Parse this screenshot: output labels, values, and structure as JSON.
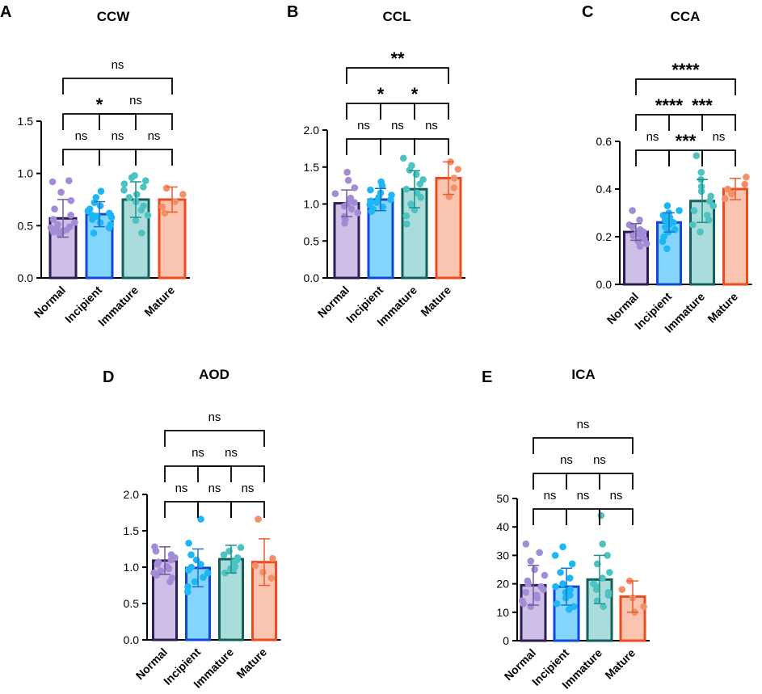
{
  "groups": [
    "Normal",
    "Incipient",
    "Immature",
    "Mature"
  ],
  "colors": {
    "fill": [
      "#cdbfe6",
      "#83d5fb",
      "#aadcdb",
      "#f9c4b0"
    ],
    "edge": [
      "#2e1d52",
      "#1049d8",
      "#11605c",
      "#ee4a1b"
    ],
    "dot": [
      "#a38cd6",
      "#1eb6f4",
      "#4cc3c0",
      "#f2906a"
    ],
    "err": [
      "#6c5aa0",
      "#1b73cf",
      "#1f8f87",
      "#e85e30"
    ]
  },
  "chart_data": [
    {
      "id": "A",
      "type": "bar",
      "title": "CCW",
      "categories": [
        "Normal",
        "Incipient",
        "Immature",
        "Mature"
      ],
      "values": [
        0.57,
        0.61,
        0.75,
        0.75
      ],
      "sd": [
        0.18,
        0.12,
        0.17,
        0.12
      ],
      "ylim": [
        0,
        1.5
      ],
      "yticks": [
        "0.0",
        "0.5",
        "1.0",
        "1.5"
      ],
      "points": [
        [
          0.93,
          0.92,
          0.82,
          0.74,
          0.66,
          0.6,
          0.56,
          0.53,
          0.51,
          0.49,
          0.48,
          0.47,
          0.46,
          0.45,
          0.44,
          0.42
        ],
        [
          0.83,
          0.77,
          0.72,
          0.69,
          0.66,
          0.64,
          0.62,
          0.6,
          0.59,
          0.58,
          0.56,
          0.53,
          0.51,
          0.48,
          0.43
        ],
        [
          0.98,
          0.96,
          0.93,
          0.9,
          0.87,
          0.84,
          0.8,
          0.77,
          0.73,
          0.69,
          0.65,
          0.6,
          0.55,
          0.43
        ],
        [
          0.86,
          0.8,
          0.73,
          0.68,
          0.62
        ]
      ],
      "comparisons": [
        {
          "groups": [
            0,
            1
          ],
          "label": "ns"
        },
        {
          "groups": [
            1,
            2
          ],
          "label": "ns"
        },
        {
          "groups": [
            2,
            3
          ],
          "label": "ns"
        },
        {
          "groups": [
            0,
            2
          ],
          "label": "*"
        },
        {
          "groups": [
            1,
            3
          ],
          "label": "ns"
        },
        {
          "groups": [
            0,
            3
          ],
          "label": "ns"
        }
      ]
    },
    {
      "id": "B",
      "type": "bar",
      "title": "CCL",
      "categories": [
        "Normal",
        "Incipient",
        "Immature",
        "Mature"
      ],
      "values": [
        1.01,
        1.06,
        1.2,
        1.35
      ],
      "sd": [
        0.18,
        0.15,
        0.25,
        0.22
      ],
      "ylim": [
        0,
        2.0
      ],
      "yticks": [
        "0.0",
        "0.5",
        "1.0",
        "1.5",
        "2.0"
      ],
      "points": [
        [
          1.43,
          1.32,
          1.22,
          1.14,
          1.08,
          1.04,
          1.02,
          1.0,
          0.97,
          0.93,
          0.88,
          0.83,
          0.79,
          0.74
        ],
        [
          1.3,
          1.25,
          1.19,
          1.15,
          1.12,
          1.09,
          1.06,
          1.04,
          1.02,
          0.99,
          0.96,
          0.93,
          0.9
        ],
        [
          1.62,
          1.52,
          1.46,
          1.4,
          1.33,
          1.27,
          1.2,
          1.15,
          1.09,
          1.0,
          0.92,
          0.84,
          0.73
        ],
        [
          1.57,
          1.47,
          1.35,
          1.22,
          1.1
        ]
      ],
      "comparisons": [
        {
          "groups": [
            0,
            1
          ],
          "label": "ns"
        },
        {
          "groups": [
            1,
            2
          ],
          "label": "ns"
        },
        {
          "groups": [
            2,
            3
          ],
          "label": "ns"
        },
        {
          "groups": [
            0,
            2
          ],
          "label": "*"
        },
        {
          "groups": [
            1,
            3
          ],
          "label": "*"
        },
        {
          "groups": [
            0,
            3
          ],
          "label": "**"
        }
      ]
    },
    {
      "id": "C",
      "type": "bar",
      "title": "CCA",
      "categories": [
        "Normal",
        "Incipient",
        "Immature",
        "Mature"
      ],
      "values": [
        0.22,
        0.26,
        0.35,
        0.4
      ],
      "sd": [
        0.035,
        0.04,
        0.09,
        0.045
      ],
      "ylim": [
        0,
        0.6
      ],
      "yticks": [
        "0.0",
        "0.2",
        "0.4",
        "0.6"
      ],
      "points": [
        [
          0.31,
          0.27,
          0.25,
          0.24,
          0.23,
          0.22,
          0.215,
          0.21,
          0.205,
          0.2,
          0.19,
          0.18,
          0.17,
          0.16
        ],
        [
          0.33,
          0.31,
          0.3,
          0.29,
          0.28,
          0.27,
          0.26,
          0.25,
          0.24,
          0.23,
          0.22,
          0.2,
          0.18,
          0.15
        ],
        [
          0.54,
          0.47,
          0.44,
          0.41,
          0.39,
          0.37,
          0.35,
          0.33,
          0.31,
          0.29,
          0.27,
          0.25,
          0.22
        ],
        [
          0.45,
          0.42,
          0.4,
          0.38,
          0.36
        ]
      ],
      "comparisons": [
        {
          "groups": [
            0,
            1
          ],
          "label": "ns"
        },
        {
          "groups": [
            1,
            2
          ],
          "label": "***"
        },
        {
          "groups": [
            2,
            3
          ],
          "label": "ns"
        },
        {
          "groups": [
            0,
            2
          ],
          "label": "****"
        },
        {
          "groups": [
            1,
            3
          ],
          "label": "***"
        },
        {
          "groups": [
            0,
            3
          ],
          "label": "****"
        }
      ]
    },
    {
      "id": "D",
      "type": "bar",
      "title": "AOD",
      "categories": [
        "Normal",
        "Incipient",
        "Immature",
        "Mature"
      ],
      "values": [
        1.09,
        0.99,
        1.11,
        1.07
      ],
      "sd": [
        0.19,
        0.26,
        0.19,
        0.32
      ],
      "ylim": [
        0,
        2.0
      ],
      "yticks": [
        "0.0",
        "0.5",
        "1.0",
        "1.5",
        "2.0"
      ],
      "points": [
        [
          1.28,
          1.22,
          1.17,
          1.13,
          1.1,
          1.07,
          1.04,
          1.01,
          0.98,
          0.95,
          0.92,
          0.89,
          0.85,
          0.8
        ],
        [
          1.66,
          1.33,
          1.17,
          1.1,
          1.04,
          1.0,
          0.96,
          0.92,
          0.86,
          0.8,
          0.73,
          0.66
        ],
        [
          1.27,
          1.22,
          1.17,
          1.13,
          1.1,
          1.07,
          1.04,
          1.01,
          0.98,
          0.95,
          0.92
        ],
        [
          1.66,
          1.12,
          1.02,
          0.93,
          0.85
        ]
      ],
      "comparisons": [
        {
          "groups": [
            0,
            1
          ],
          "label": "ns"
        },
        {
          "groups": [
            1,
            2
          ],
          "label": "ns"
        },
        {
          "groups": [
            2,
            3
          ],
          "label": "ns"
        },
        {
          "groups": [
            0,
            2
          ],
          "label": "ns"
        },
        {
          "groups": [
            1,
            3
          ],
          "label": "ns"
        },
        {
          "groups": [
            0,
            3
          ],
          "label": "ns"
        }
      ]
    },
    {
      "id": "E",
      "type": "bar",
      "title": "ICA",
      "categories": [
        "Normal",
        "Incipient",
        "Immature",
        "Mature"
      ],
      "values": [
        19.5,
        19.0,
        21.5,
        15.5
      ],
      "sd": [
        7.0,
        6.5,
        8.5,
        5.5
      ],
      "ylim": [
        0,
        50
      ],
      "yticks": [
        "0",
        "10",
        "20",
        "30",
        "40",
        "50"
      ],
      "points": [
        [
          34,
          31,
          28,
          25,
          23,
          21,
          20,
          19,
          18,
          17,
          16,
          15,
          14,
          13,
          12
        ],
        [
          33,
          30,
          27,
          24,
          22,
          20,
          19,
          18,
          17,
          16,
          15,
          13,
          12,
          11
        ],
        [
          44,
          34,
          30,
          27,
          24,
          22,
          20,
          19,
          18,
          17,
          16,
          14,
          12
        ],
        [
          21,
          18,
          15,
          12,
          10
        ]
      ],
      "comparisons": [
        {
          "groups": [
            0,
            1
          ],
          "label": "ns"
        },
        {
          "groups": [
            1,
            2
          ],
          "label": "ns"
        },
        {
          "groups": [
            2,
            3
          ],
          "label": "ns"
        },
        {
          "groups": [
            0,
            2
          ],
          "label": "ns"
        },
        {
          "groups": [
            1,
            3
          ],
          "label": "ns"
        },
        {
          "groups": [
            0,
            3
          ],
          "label": "ns"
        }
      ]
    }
  ]
}
